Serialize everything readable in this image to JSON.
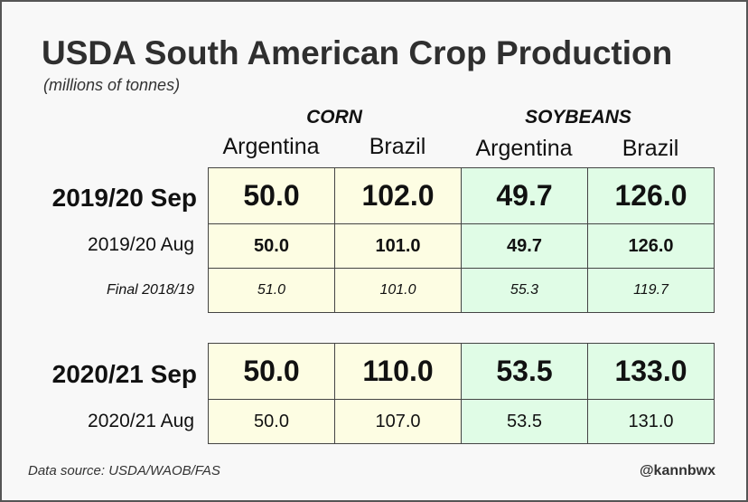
{
  "chart_data": {
    "type": "table",
    "title": "USDA South American Crop Production",
    "subtitle": "(millions of tonnes)",
    "groups": [
      "CORN",
      "SOYBEANS"
    ],
    "columns": [
      "Argentina",
      "Brazil",
      "Argentina",
      "Brazil"
    ],
    "rows": [
      {
        "label": "2019/20 Sep",
        "values": [
          "50.0",
          "102.0",
          "49.7",
          "126.0"
        ]
      },
      {
        "label": "2019/20 Aug",
        "values": [
          "50.0",
          "101.0",
          "49.7",
          "126.0"
        ]
      },
      {
        "label": "Final 2018/19",
        "values": [
          "51.0",
          "101.0",
          "55.3",
          "119.7"
        ]
      },
      {
        "label": "2020/21 Sep",
        "values": [
          "50.0",
          "110.0",
          "53.5",
          "133.0"
        ]
      },
      {
        "label": "2020/21 Aug",
        "values": [
          "50.0",
          "107.0",
          "53.5",
          "131.0"
        ]
      }
    ],
    "source": "Data source: USDA/WAOB/FAS",
    "credit": "@kannbwx"
  },
  "colors": {
    "corn_fill": "#fdfde3",
    "soy_fill": "#e0fce6",
    "frame": "#555555",
    "background": "#f8f8f8"
  }
}
